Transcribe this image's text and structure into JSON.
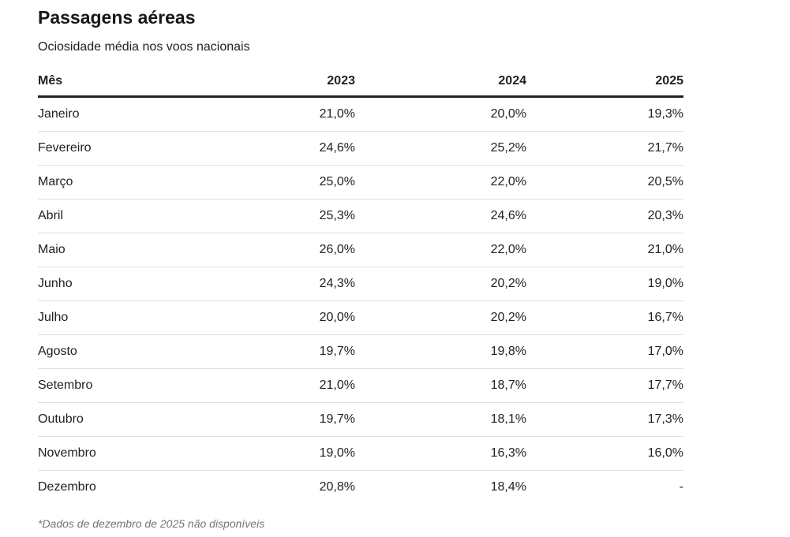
{
  "page": {
    "title": "Passagens aéreas",
    "subtitle": "Ociosidade média nos voos nacionais",
    "footnote": "*Dados de dezembro de 2025 não disponíveis"
  },
  "table": {
    "columns": [
      "Mês",
      "2023",
      "2024",
      "2025"
    ],
    "rows": [
      {
        "month": "Janeiro",
        "y2023": "21,0%",
        "y2024": "20,0%",
        "y2025": "19,3%"
      },
      {
        "month": "Fevereiro",
        "y2023": "24,6%",
        "y2024": "25,2%",
        "y2025": "21,7%"
      },
      {
        "month": "Março",
        "y2023": "25,0%",
        "y2024": "22,0%",
        "y2025": "20,5%"
      },
      {
        "month": "Abril",
        "y2023": "25,3%",
        "y2024": "24,6%",
        "y2025": "20,3%"
      },
      {
        "month": "Maio",
        "y2023": "26,0%",
        "y2024": "22,0%",
        "y2025": "21,0%"
      },
      {
        "month": "Junho",
        "y2023": "24,3%",
        "y2024": "20,2%",
        "y2025": "19,0%"
      },
      {
        "month": "Julho",
        "y2023": "20,0%",
        "y2024": "20,2%",
        "y2025": "16,7%"
      },
      {
        "month": "Agosto",
        "y2023": "19,7%",
        "y2024": "19,8%",
        "y2025": "17,0%"
      },
      {
        "month": "Setembro",
        "y2023": "21,0%",
        "y2024": "18,7%",
        "y2025": "17,7%"
      },
      {
        "month": "Outubro",
        "y2023": "19,7%",
        "y2024": "18,1%",
        "y2025": "17,3%"
      },
      {
        "month": "Novembro",
        "y2023": "19,0%",
        "y2024": "16,3%",
        "y2025": "16,0%"
      },
      {
        "month": "Dezembro",
        "y2023": "20,8%",
        "y2024": "18,4%",
        "y2025": "-"
      }
    ]
  },
  "colors": {
    "text": "#202124",
    "header_border": "#212121",
    "row_border": "#e0e0e0",
    "footnote": "#70757a",
    "background": "#ffffff"
  },
  "chart_data": {
    "type": "table",
    "title": "Passagens aéreas",
    "subtitle": "Ociosidade média nos voos nacionais",
    "categories": [
      "Janeiro",
      "Fevereiro",
      "Março",
      "Abril",
      "Maio",
      "Junho",
      "Julho",
      "Agosto",
      "Setembro",
      "Outubro",
      "Novembro",
      "Dezembro"
    ],
    "series": [
      {
        "name": "2023",
        "values": [
          21.0,
          24.6,
          25.0,
          25.3,
          26.0,
          24.3,
          20.0,
          19.7,
          21.0,
          19.7,
          19.0,
          20.8
        ]
      },
      {
        "name": "2024",
        "values": [
          20.0,
          25.2,
          22.0,
          24.6,
          22.0,
          20.2,
          20.2,
          19.8,
          18.7,
          18.1,
          16.3,
          18.4
        ]
      },
      {
        "name": "2025",
        "values": [
          19.3,
          21.7,
          20.5,
          20.3,
          21.0,
          19.0,
          16.7,
          17.0,
          17.7,
          17.3,
          16.0,
          null
        ]
      }
    ],
    "unit": "%",
    "note": "*Dados de dezembro de 2025 não disponíveis"
  }
}
